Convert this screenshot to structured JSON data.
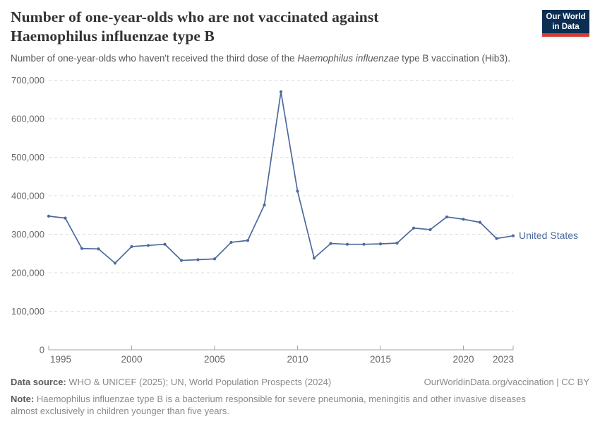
{
  "header": {
    "title_line1": "Number of one-year-olds who are not vaccinated against",
    "title_line2": "Haemophilus influenzae type B",
    "subtitle_pre": "Number of one-year-olds who haven't received the third dose of the ",
    "subtitle_italic": "Haemophilus influenzae",
    "subtitle_post": " type B vaccination (Hib3)."
  },
  "logo": {
    "line1": "Our World",
    "line2": "in Data",
    "bg_color": "#0C2E54",
    "accent_color": "#D73B33"
  },
  "footer": {
    "data_source_label": "Data source:",
    "data_source_text": " WHO & UNICEF (2025); UN, World Population Prospects (2024)",
    "license_text": "OurWorldinData.org/vaccination | CC BY",
    "note_label": "Note:",
    "note_text": " Haemophilus influenzae type B is a bacterium responsible for severe pneumonia, meningitis and other invasive diseases almost exclusively in children younger than five years."
  },
  "chart_data": {
    "type": "line",
    "title": "Number of one-year-olds who are not vaccinated against Haemophilus influenzae type B",
    "subtitle": "Number of one-year-olds who haven't received the third dose of the Haemophilus influenzae type B vaccination (Hib3).",
    "entity_label": "United States",
    "x": [
      1995,
      1996,
      1997,
      1998,
      1999,
      2000,
      2001,
      2002,
      2003,
      2004,
      2005,
      2006,
      2007,
      2008,
      2009,
      2010,
      2011,
      2012,
      2013,
      2014,
      2015,
      2016,
      2017,
      2018,
      2019,
      2020,
      2021,
      2022,
      2023
    ],
    "series": [
      {
        "name": "United States",
        "values": [
          347000,
          342000,
          263000,
          262000,
          225000,
          268000,
          271000,
          274000,
          232000,
          234000,
          236000,
          279000,
          284000,
          376000,
          670000,
          412000,
          238000,
          276000,
          274000,
          274000,
          275000,
          277000,
          316000,
          312000,
          345000,
          339000,
          331000,
          289000,
          296000
        ]
      }
    ],
    "x_ticks": [
      1995,
      2000,
      2005,
      2010,
      2015,
      2020,
      2023
    ],
    "y_ticks": [
      0,
      100000,
      200000,
      300000,
      400000,
      500000,
      600000,
      700000
    ],
    "xlim": [
      1995,
      2023
    ],
    "ylim": [
      0,
      700000
    ],
    "grid": "horizontal-dashed",
    "legend_position": "end-of-line",
    "line_color": "#4C6A9C",
    "axis_color": "#a5a5a5",
    "grid_color": "#dcdcdc",
    "tick_label_color": "#666666"
  }
}
